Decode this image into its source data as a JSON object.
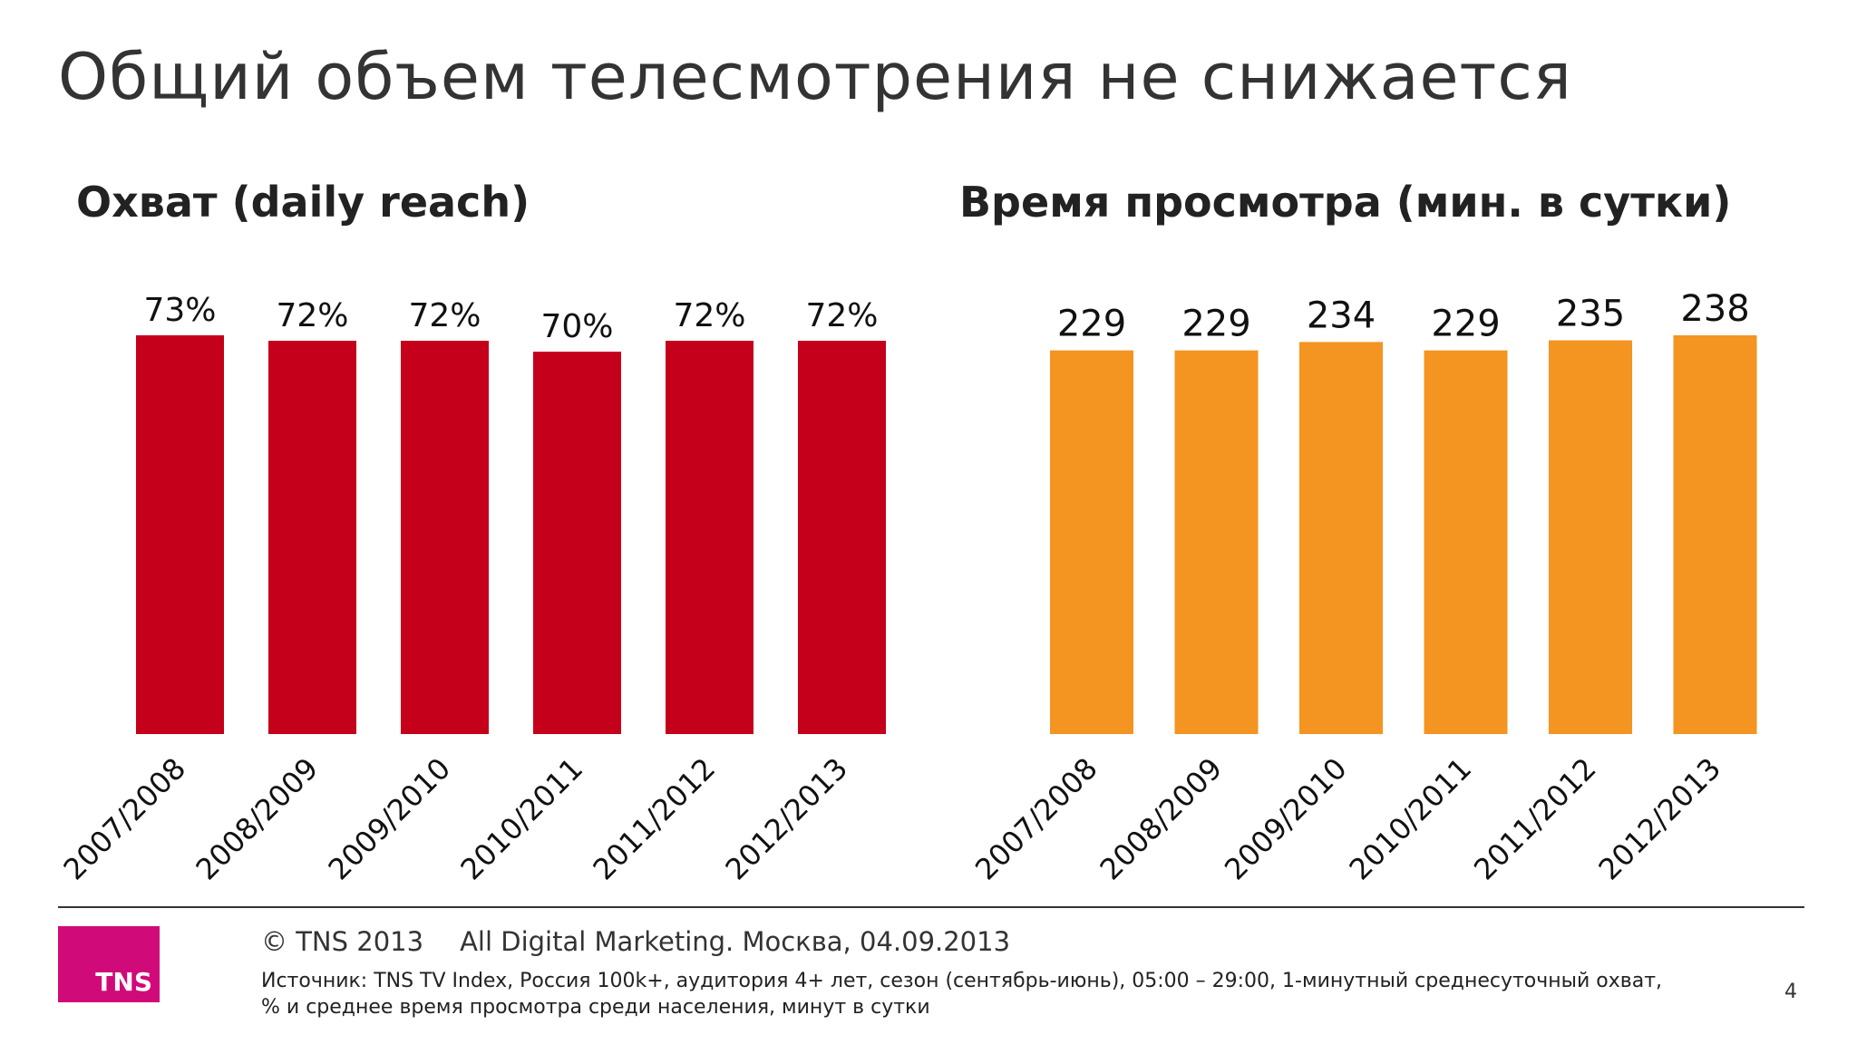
{
  "title": "Общий объем телесмотрения не снижается",
  "chart_data": [
    {
      "type": "bar",
      "title": "Охват (daily reach)",
      "categories": [
        "2007/2008",
        "2008/2009",
        "2009/2010",
        "2010/2011",
        "2011/2012",
        "2012/2013"
      ],
      "values": [
        73,
        72,
        72,
        70,
        72,
        72
      ],
      "value_labels": [
        "73%",
        "72%",
        "72%",
        "70%",
        "72%",
        "72%"
      ],
      "unit": "%",
      "color": "#c4001a",
      "ylim": [
        0,
        73
      ],
      "grid": false,
      "legend": "none"
    },
    {
      "type": "bar",
      "title": "Время просмотра (мин. в сутки)",
      "categories": [
        "2007/2008",
        "2008/2009",
        "2009/2010",
        "2010/2011",
        "2011/2012",
        "2012/2013"
      ],
      "values": [
        229,
        229,
        234,
        229,
        235,
        238
      ],
      "value_labels": [
        "229",
        "229",
        "234",
        "229",
        "235",
        "238"
      ],
      "unit": "мин. в сутки",
      "color": "#f49421",
      "ylim": [
        0,
        238
      ],
      "grid": false,
      "legend": "none"
    }
  ],
  "footer": {
    "copyright": "© TNS 2013",
    "event": "All Digital Marketing. Москва, 04.09.2013",
    "source": "Источник: TNS TV Index, Россия 100k+, аудитория 4+ лет, сезон (сентябрь-июнь), 05:00 – 29:00, 1-минутный среднесуточный охват, % и среднее время просмотра среди населения, минут в сутки",
    "page_number": "4",
    "logo_text": "TNS"
  },
  "colors": {
    "reach_bar": "#c4001a",
    "time_bar": "#f49421",
    "logo": "#d10a7a"
  }
}
